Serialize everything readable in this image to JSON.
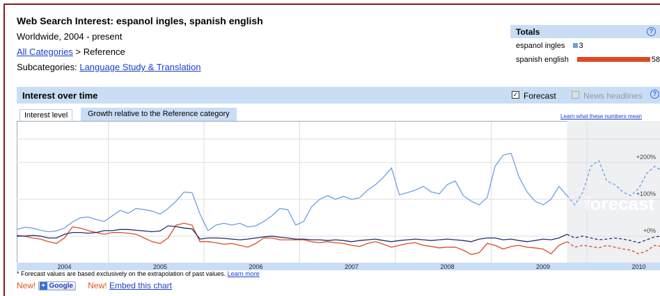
{
  "header": {
    "title": "Web Search Interest: espanol ingles, spanish english",
    "subtitle": "Worldwide, 2004 - present",
    "category_link": "All Categories",
    "category_rest": " > Reference",
    "subcategories_label": "Subcategories: ",
    "subcategory_link": "Language Study & Translation"
  },
  "totals_title": "Totals",
  "help": "?",
  "panel": {
    "title": "Interest over time",
    "forecast_label": "Forecast",
    "news_label": "News headlines"
  },
  "tabs": [
    "Interest level",
    "Growth relative to the Reference category"
  ],
  "learn_link": "Learn what these numbers mean",
  "watermark": "forecast",
  "footnote": "* Forecast values are based exclusively on the extrapolation of past values. ",
  "footnote_link": "Learn more",
  "footer": {
    "new1": "New!",
    "google": "Google",
    "new2": "New!",
    "embed": "Embed this chart"
  },
  "chart_data": {
    "type": "line",
    "categories": [
      null,
      null,
      null,
      null,
      null,
      null,
      "2004",
      null,
      null,
      null,
      null,
      null,
      null,
      null,
      null,
      null,
      null,
      null,
      "2005",
      null,
      null,
      null,
      null,
      null,
      null,
      null,
      null,
      null,
      null,
      null,
      "2006",
      null,
      null,
      null,
      null,
      null,
      null,
      null,
      null,
      null,
      null,
      null,
      "2007",
      null,
      null,
      null,
      null,
      null,
      null,
      null,
      null,
      null,
      null,
      null,
      "2008",
      null,
      null,
      null,
      null,
      null,
      null,
      null,
      null,
      null,
      null,
      null,
      "2009",
      null,
      null,
      null,
      null,
      null,
      null,
      null,
      null,
      null,
      null,
      null,
      "2010",
      null,
      null,
      null
    ],
    "ylim": [
      -72,
      313
    ],
    "yticks": [
      {
        "value": 0,
        "label": "+0%"
      },
      {
        "value": 100,
        "label": "+100%"
      },
      {
        "value": 200,
        "label": "+200%"
      }
    ],
    "grid": true,
    "series": [
      {
        "name": "espanol ingles",
        "color": "#6d9fe3",
        "total": 3,
        "values": [
          18,
          24,
          22,
          16,
          12,
          14,
          22,
          38,
          50,
          52,
          45,
          40,
          55,
          70,
          62,
          75,
          72,
          68,
          60,
          75,
          95,
          120,
          118,
          60,
          15,
          30,
          35,
          30,
          35,
          25,
          28,
          40,
          55,
          75,
          72,
          30,
          40,
          80,
          100,
          110,
          100,
          108,
          100,
          104,
          125,
          140,
          160,
          185,
          112,
          118,
          125,
          135,
          120,
          115,
          140,
          150,
          110,
          95,
          85,
          105,
          190,
          220,
          225,
          160,
          120,
          95,
          85,
          100,
          135,
          110,
          null,
          null,
          null,
          null,
          null,
          null,
          null,
          null,
          null,
          null,
          null,
          null
        ],
        "forecast": [
          null,
          null,
          null,
          null,
          null,
          null,
          null,
          null,
          null,
          null,
          null,
          null,
          null,
          null,
          null,
          null,
          null,
          null,
          null,
          null,
          null,
          null,
          null,
          null,
          null,
          null,
          null,
          null,
          null,
          null,
          null,
          null,
          null,
          null,
          null,
          null,
          null,
          null,
          null,
          null,
          null,
          null,
          null,
          null,
          null,
          null,
          null,
          null,
          null,
          null,
          null,
          null,
          null,
          null,
          null,
          null,
          null,
          null,
          null,
          null,
          null,
          null,
          null,
          null,
          null,
          null,
          null,
          null,
          null,
          110,
          85,
          120,
          190,
          205,
          150,
          140,
          120,
          110,
          130,
          170,
          190,
          175
        ]
      },
      {
        "name": "spanish english",
        "color": "#dc4a26",
        "total": 58,
        "values": [
          2,
          0,
          -5,
          -8,
          -15,
          -20,
          -5,
          25,
          22,
          15,
          10,
          5,
          10,
          10,
          8,
          5,
          -5,
          -15,
          -20,
          -5,
          30,
          35,
          30,
          -15,
          -15,
          -18,
          -22,
          -20,
          -25,
          -30,
          -20,
          -5,
          -5,
          -10,
          -10,
          -10,
          -10,
          -15,
          -18,
          -15,
          -18,
          -20,
          -25,
          -28,
          -20,
          -15,
          -22,
          -30,
          -25,
          -20,
          -18,
          -25,
          -28,
          -32,
          -30,
          -30,
          -38,
          -50,
          -45,
          -20,
          -25,
          -35,
          -28,
          -25,
          -30,
          -32,
          -35,
          -48,
          -25,
          -15,
          null,
          null,
          null,
          null,
          null,
          null,
          null,
          null,
          null,
          null,
          null,
          null
        ],
        "forecast": [
          null,
          null,
          null,
          null,
          null,
          null,
          null,
          null,
          null,
          null,
          null,
          null,
          null,
          null,
          null,
          null,
          null,
          null,
          null,
          null,
          null,
          null,
          null,
          null,
          null,
          null,
          null,
          null,
          null,
          null,
          null,
          null,
          null,
          null,
          null,
          null,
          null,
          null,
          null,
          null,
          null,
          null,
          null,
          null,
          null,
          null,
          null,
          null,
          null,
          null,
          null,
          null,
          null,
          null,
          null,
          null,
          null,
          null,
          null,
          null,
          null,
          null,
          null,
          null,
          null,
          null,
          null,
          null,
          null,
          -15,
          -30,
          -25,
          -28,
          -32,
          -25,
          -30,
          -35,
          -38,
          -48,
          -40,
          -25,
          -28
        ]
      },
      {
        "color": "#1f2f6b",
        "values": [
          0,
          0,
          2,
          0,
          -5,
          -5,
          5,
          10,
          10,
          8,
          10,
          15,
          15,
          18,
          18,
          16,
          14,
          12,
          14,
          28,
          26,
          22,
          20,
          -8,
          -5,
          -5,
          -6,
          -8,
          -10,
          -8,
          -5,
          -2,
          0,
          -3,
          -5,
          -8,
          -8,
          -10,
          -10,
          -12,
          -10,
          -12,
          -15,
          -12,
          -10,
          -8,
          -12,
          -15,
          -12,
          -10,
          -8,
          -10,
          -12,
          -10,
          -8,
          -10,
          -12,
          -15,
          -8,
          -5,
          -5,
          -10,
          -8,
          -12,
          -15,
          -12,
          -8,
          -10,
          -5,
          5,
          null,
          null,
          null,
          null,
          null,
          null,
          null,
          null,
          null,
          null,
          null,
          null
        ],
        "forecast": [
          null,
          null,
          null,
          null,
          null,
          null,
          null,
          null,
          null,
          null,
          null,
          null,
          null,
          null,
          null,
          null,
          null,
          null,
          null,
          null,
          null,
          null,
          null,
          null,
          null,
          null,
          null,
          null,
          null,
          null,
          null,
          null,
          null,
          null,
          null,
          null,
          null,
          null,
          null,
          null,
          null,
          null,
          null,
          null,
          null,
          null,
          null,
          null,
          null,
          null,
          null,
          null,
          null,
          null,
          null,
          null,
          null,
          null,
          null,
          null,
          null,
          null,
          null,
          null,
          null,
          null,
          null,
          null,
          null,
          5,
          -5,
          0,
          -5,
          -10,
          -8,
          -5,
          -8,
          -12,
          -18,
          -10,
          -2,
          0
        ]
      }
    ]
  }
}
